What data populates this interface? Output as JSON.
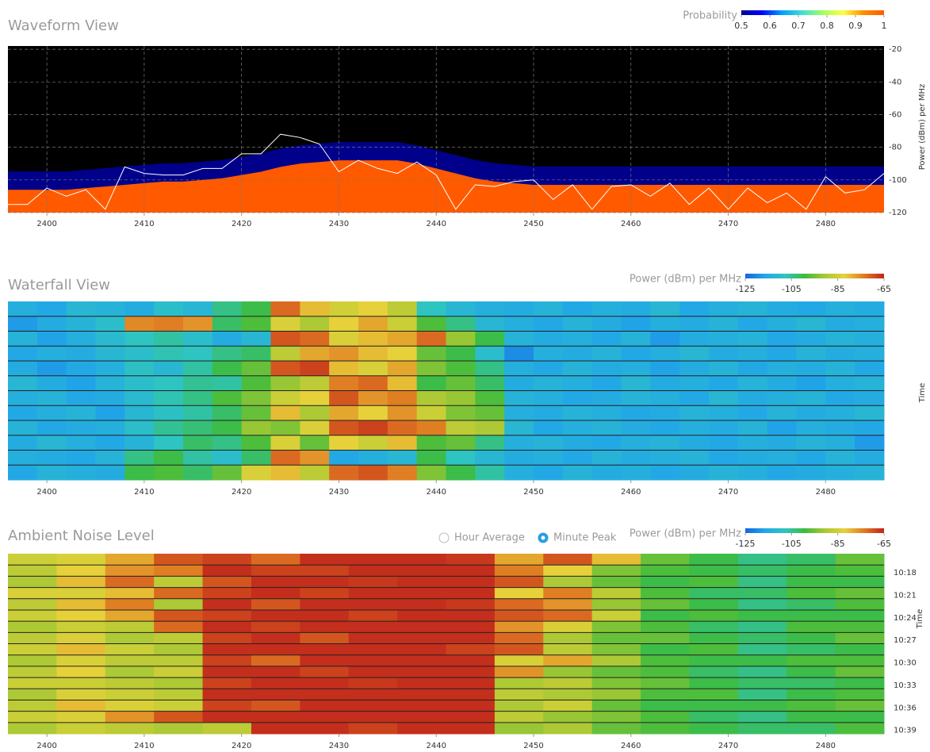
{
  "chart_data": [
    {
      "type": "waveform",
      "title": "Waveform View",
      "x": [
        2396,
        2398,
        2400,
        2402,
        2404,
        2406,
        2408,
        2410,
        2412,
        2414,
        2416,
        2418,
        2420,
        2422,
        2424,
        2426,
        2428,
        2430,
        2432,
        2434,
        2436,
        2438,
        2440,
        2442,
        2444,
        2446,
        2448,
        2450,
        2452,
        2454,
        2456,
        2458,
        2460,
        2462,
        2464,
        2466,
        2468,
        2470,
        2472,
        2474,
        2476,
        2478,
        2480,
        2482,
        2484,
        2486
      ],
      "series": [
        {
          "color": "#ff5a00",
          "values": [
            -106,
            -106,
            -106,
            -106,
            -105,
            -104,
            -103,
            -102,
            -101,
            -101,
            -100,
            -99,
            -97,
            -95,
            -92,
            -90,
            -89,
            -88,
            -88,
            -88,
            -88,
            -90,
            -93,
            -96,
            -99,
            -101,
            -102,
            -103,
            -103,
            -103,
            -103,
            -103,
            -103,
            -103,
            -103,
            -103,
            -103,
            -103,
            -103,
            -103,
            -103,
            -103,
            -103,
            -103,
            -103,
            -103
          ]
        },
        {
          "color": "#ffffff",
          "values": [
            -115,
            -115,
            -105,
            -110,
            -106,
            -118,
            -92,
            -96,
            -97,
            -97,
            -93,
            -93,
            -84,
            -84,
            -72,
            -74,
            -78,
            -95,
            -88,
            -93,
            -96,
            -89,
            -97,
            -118,
            -103,
            -104,
            -101,
            -100,
            -112,
            -103,
            -118,
            -104,
            -103,
            -110,
            -102,
            -115,
            -105,
            -118,
            -105,
            -114,
            -108,
            -118,
            -98,
            -108,
            -106,
            -96
          ]
        }
      ],
      "xlim": [
        2396,
        2486
      ],
      "xticks": [
        2400,
        2410,
        2420,
        2430,
        2440,
        2450,
        2460,
        2470,
        2480
      ],
      "ylim": [
        -120,
        -18
      ],
      "yticks": [
        -20,
        -40,
        -60,
        -80,
        -100,
        -120
      ],
      "y_label": "Power (dBm) per MHz",
      "grid": true,
      "colorbar": {
        "label": "Probability",
        "lim": [
          0.5,
          1
        ],
        "ticks": [
          0.5,
          0.6,
          0.7,
          0.8,
          0.9,
          1
        ],
        "colors": [
          "#00008b",
          "#0000ff",
          "#00a0ff",
          "#40e0d0",
          "#a0ff60",
          "#ffff40",
          "#ff8c00",
          "#ff5a00"
        ]
      }
    },
    {
      "type": "heatmap",
      "title": "Waterfall View",
      "bins": [
        2396,
        2399,
        2402,
        2405,
        2408,
        2411,
        2414,
        2417,
        2420,
        2423,
        2426,
        2429,
        2432,
        2435,
        2438,
        2441,
        2444,
        2447,
        2450,
        2453,
        2456,
        2459,
        2462,
        2465,
        2468,
        2471,
        2474,
        2477,
        2480,
        2483,
        2486
      ],
      "values": [
        [
          -114,
          -116,
          -112,
          -113,
          -115,
          -110,
          -112,
          -104,
          -100,
          -72,
          -80,
          -85,
          -82,
          -88,
          -108,
          -112,
          -114,
          -115,
          -113,
          -116,
          -114,
          -115,
          -112,
          -116,
          -114,
          -113,
          -115,
          -116,
          -114,
          -115
        ],
        [
          -118,
          -115,
          -113,
          -110,
          -75,
          -74,
          -76,
          -102,
          -98,
          -84,
          -90,
          -82,
          -78,
          -86,
          -98,
          -104,
          -112,
          -114,
          -116,
          -113,
          -115,
          -117,
          -114,
          -115,
          -113,
          -116,
          -114,
          -112,
          -115,
          -114
        ],
        [
          -113,
          -117,
          -114,
          -111,
          -108,
          -106,
          -110,
          -115,
          -112,
          -70,
          -72,
          -84,
          -80,
          -78,
          -72,
          -92,
          -100,
          -113,
          -115,
          -114,
          -116,
          -113,
          -118,
          -115,
          -114,
          -113,
          -116,
          -115,
          -113,
          -114
        ],
        [
          -116,
          -114,
          -115,
          -112,
          -110,
          -107,
          -108,
          -104,
          -102,
          -88,
          -78,
          -76,
          -80,
          -82,
          -96,
          -100,
          -110,
          -120,
          -114,
          -115,
          -113,
          -116,
          -114,
          -112,
          -115,
          -114,
          -116,
          -113,
          -115,
          -114
        ],
        [
          -115,
          -118,
          -116,
          -114,
          -109,
          -112,
          -106,
          -100,
          -96,
          -70,
          -68,
          -80,
          -84,
          -78,
          -94,
          -98,
          -104,
          -114,
          -116,
          -113,
          -115,
          -114,
          -117,
          -115,
          -113,
          -116,
          -114,
          -115,
          -113,
          -116
        ],
        [
          -112,
          -115,
          -117,
          -113,
          -110,
          -108,
          -105,
          -106,
          -98,
          -92,
          -88,
          -74,
          -72,
          -80,
          -100,
          -96,
          -102,
          -115,
          -113,
          -114,
          -116,
          -112,
          -115,
          -114,
          -116,
          -113,
          -115,
          -117,
          -114,
          -113
        ],
        [
          -114,
          -113,
          -116,
          -115,
          -111,
          -107,
          -104,
          -98,
          -94,
          -86,
          -82,
          -70,
          -76,
          -74,
          -90,
          -92,
          -98,
          -113,
          -114,
          -116,
          -115,
          -113,
          -114,
          -116,
          -112,
          -115,
          -114,
          -113,
          -116,
          -115
        ],
        [
          -116,
          -114,
          -113,
          -117,
          -112,
          -109,
          -106,
          -102,
          -96,
          -80,
          -90,
          -78,
          -82,
          -76,
          -86,
          -94,
          -96,
          -114,
          -115,
          -113,
          -114,
          -116,
          -115,
          -113,
          -114,
          -116,
          -113,
          -115,
          -114,
          -112
        ],
        [
          -113,
          -116,
          -115,
          -114,
          -110,
          -105,
          -103,
          -100,
          -92,
          -94,
          -84,
          -70,
          -68,
          -72,
          -74,
          -88,
          -90,
          -112,
          -116,
          -114,
          -113,
          -115,
          -116,
          -114,
          -115,
          -113,
          -117,
          -114,
          -115,
          -116
        ],
        [
          -115,
          -112,
          -114,
          -116,
          -113,
          -108,
          -102,
          -104,
          -98,
          -84,
          -96,
          -82,
          -86,
          -80,
          -98,
          -96,
          -104,
          -114,
          -113,
          -115,
          -116,
          -114,
          -113,
          -115,
          -116,
          -114,
          -115,
          -113,
          -114,
          -118
        ],
        [
          -114,
          -115,
          -116,
          -113,
          -104,
          -100,
          -106,
          -110,
          -102,
          -72,
          -76,
          -116,
          -114,
          -112,
          -100,
          -108,
          -112,
          -115,
          -114,
          -116,
          -113,
          -115,
          -114,
          -113,
          -116,
          -115,
          -114,
          -116,
          -113,
          -115
        ],
        [
          -116,
          -113,
          -114,
          -115,
          -100,
          -98,
          -102,
          -96,
          -84,
          -80,
          -88,
          -72,
          -70,
          -74,
          -94,
          -100,
          -106,
          -114,
          -116,
          -113,
          -115,
          -114,
          -116,
          -115,
          -113,
          -114,
          -116,
          -115,
          -114,
          -113
        ]
      ],
      "xlim": [
        2396,
        2486
      ],
      "xticks": [
        2400,
        2410,
        2420,
        2430,
        2440,
        2450,
        2460,
        2470,
        2480
      ],
      "y_label": "Time",
      "colorbar": {
        "label": "Power (dBm) per MHz",
        "lim": [
          -125,
          -65
        ],
        "ticks": [
          -125,
          -105,
          -85,
          -65
        ],
        "colors": [
          "#1565e0",
          "#22a7e8",
          "#2ec4c0",
          "#3dbb3d",
          "#a8c834",
          "#e6d23a",
          "#e07a22",
          "#c0241b"
        ]
      }
    },
    {
      "type": "heatmap",
      "title": "Ambient Noise Level",
      "controls": [
        "Hour Average",
        "Minute Peak"
      ],
      "bins": [
        2396,
        2401,
        2406,
        2411,
        2416,
        2421,
        2426,
        2431,
        2436,
        2441,
        2446,
        2451,
        2456,
        2461,
        2466,
        2471,
        2476,
        2481,
        2486
      ],
      "values": [
        [
          -86,
          -84,
          -78,
          -70,
          -68,
          -72,
          -66,
          -66,
          -66,
          -67,
          -78,
          -70,
          -80,
          -96,
          -100,
          -104,
          -102,
          -96
        ],
        [
          -88,
          -82,
          -76,
          -74,
          -66,
          -68,
          -68,
          -66,
          -66,
          -66,
          -74,
          -82,
          -94,
          -98,
          -100,
          -102,
          -100,
          -98
        ],
        [
          -90,
          -80,
          -72,
          -88,
          -70,
          -66,
          -66,
          -67,
          -66,
          -66,
          -70,
          -90,
          -96,
          -100,
          -98,
          -104,
          -100,
          -100
        ],
        [
          -84,
          -84,
          -80,
          -72,
          -68,
          -66,
          -68,
          -66,
          -66,
          -66,
          -82,
          -74,
          -88,
          -98,
          -102,
          -102,
          -98,
          -96
        ],
        [
          -88,
          -80,
          -74,
          -90,
          -66,
          -70,
          -66,
          -66,
          -66,
          -67,
          -72,
          -76,
          -92,
          -96,
          -100,
          -104,
          -102,
          -98
        ],
        [
          -86,
          -82,
          -78,
          -70,
          -68,
          -66,
          -66,
          -68,
          -66,
          -66,
          -70,
          -72,
          -86,
          -100,
          -98,
          -100,
          -100,
          -100
        ],
        [
          -90,
          -86,
          -88,
          -72,
          -66,
          -68,
          -66,
          -66,
          -66,
          -66,
          -76,
          -84,
          -94,
          -98,
          -102,
          -104,
          -98,
          -98
        ],
        [
          -88,
          -84,
          -90,
          -88,
          -68,
          -66,
          -70,
          -66,
          -66,
          -66,
          -72,
          -90,
          -96,
          -96,
          -100,
          -102,
          -100,
          -96
        ],
        [
          -86,
          -80,
          -86,
          -90,
          -66,
          -66,
          -66,
          -66,
          -66,
          -68,
          -70,
          -88,
          -94,
          -100,
          -98,
          -104,
          -102,
          -100
        ],
        [
          -90,
          -84,
          -88,
          -88,
          -68,
          -72,
          -66,
          -66,
          -66,
          -66,
          -84,
          -78,
          -90,
          -98,
          -100,
          -100,
          -98,
          -98
        ],
        [
          -88,
          -82,
          -90,
          -86,
          -66,
          -66,
          -68,
          -66,
          -66,
          -66,
          -76,
          -92,
          -96,
          -98,
          -102,
          -104,
          -100,
          -96
        ],
        [
          -86,
          -86,
          -88,
          -90,
          -68,
          -66,
          -66,
          -67,
          -66,
          -66,
          -90,
          -88,
          -94,
          -96,
          -100,
          -102,
          -102,
          -100
        ],
        [
          -90,
          -84,
          -86,
          -88,
          -66,
          -66,
          -66,
          -66,
          -66,
          -66,
          -88,
          -90,
          -92,
          -98,
          -98,
          -104,
          -100,
          -98
        ],
        [
          -88,
          -80,
          -84,
          -86,
          -68,
          -70,
          -66,
          -66,
          -66,
          -66,
          -90,
          -86,
          -96,
          -100,
          -100,
          -100,
          -98,
          -96
        ],
        [
          -86,
          -84,
          -76,
          -70,
          -66,
          -66,
          -66,
          -66,
          -66,
          -66,
          -88,
          -92,
          -94,
          -98,
          -102,
          -104,
          -100,
          -100
        ],
        [
          -90,
          -86,
          -88,
          -90,
          -88,
          -66,
          -66,
          -68,
          -66,
          -66,
          -92,
          -90,
          -96,
          -98,
          -100,
          -102,
          -102,
          -98
        ]
      ],
      "xlim": [
        2396,
        2486
      ],
      "xticks": [
        2400,
        2410,
        2420,
        2430,
        2440,
        2450,
        2460,
        2470,
        2480
      ],
      "y_labels": [
        "10:18",
        "10:21",
        "10:24",
        "10:27",
        "10:30",
        "10:33",
        "10:36",
        "10:39"
      ],
      "y_label": "Time",
      "colorbar": {
        "label": "Power (dBm) per MHz",
        "lim": [
          -125,
          -65
        ],
        "ticks": [
          -125,
          -105,
          -85,
          -65
        ],
        "colors": [
          "#1565e0",
          "#22a7e8",
          "#2ec4c0",
          "#3dbb3d",
          "#a8c834",
          "#e6d23a",
          "#e07a22",
          "#c0241b"
        ]
      }
    }
  ]
}
